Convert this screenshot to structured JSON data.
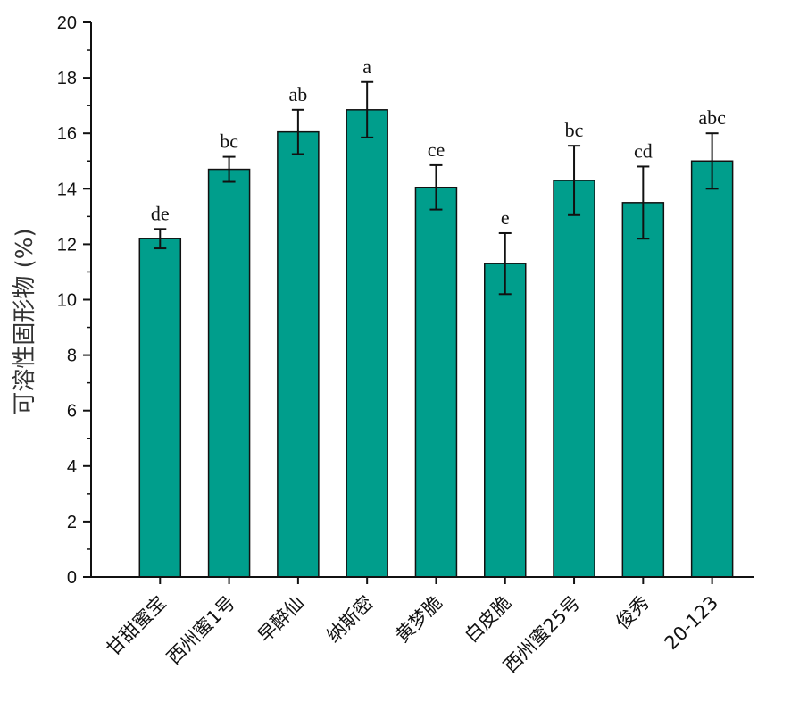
{
  "chart_data": {
    "type": "bar",
    "title": "",
    "xlabel": "",
    "ylabel": "可溶性固形物 (%)",
    "ylim": [
      0,
      20
    ],
    "yticks": [
      "0",
      "2",
      "4",
      "6",
      "8",
      "10",
      "12",
      "14",
      "16",
      "18",
      "20"
    ],
    "categories": [
      "甘甜蜜宝",
      "西州蜜1号",
      "早醉仙",
      "纳斯密",
      "黄梦脆",
      "白皮脆",
      "西州蜜25号",
      "俊秀",
      "20-123"
    ],
    "values": [
      12.2,
      14.7,
      16.05,
      16.85,
      14.05,
      11.3,
      14.3,
      13.5,
      15.0
    ],
    "errors": [
      0.35,
      0.45,
      0.8,
      1.0,
      0.8,
      1.1,
      1.25,
      1.3,
      1.0
    ],
    "significance": [
      "de",
      "bc",
      "ab",
      "a",
      "ce",
      "e",
      "bc",
      "cd",
      "abc"
    ],
    "bar_color": "#009e8c",
    "grid": false
  }
}
